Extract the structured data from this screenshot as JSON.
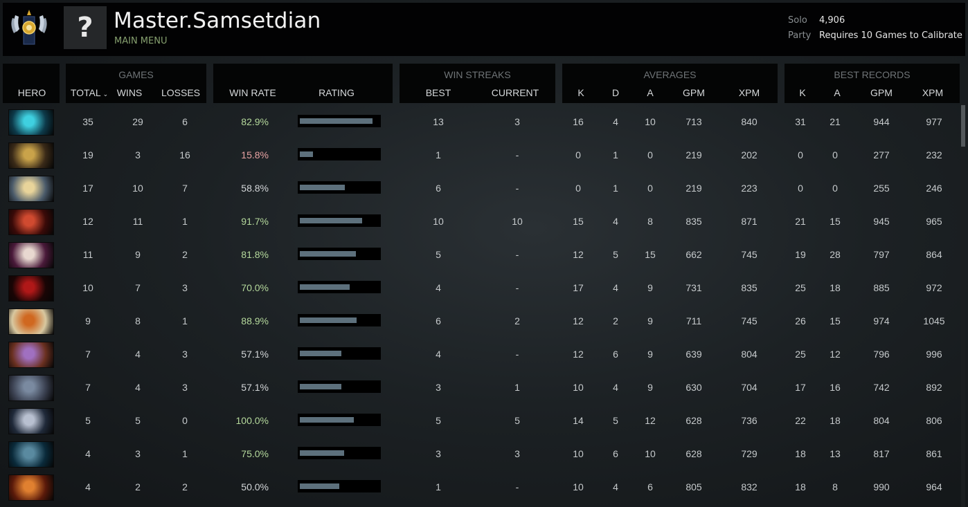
{
  "player": {
    "name": "Master.Samsetdian",
    "main_menu_label": "MAIN MENU",
    "avatar_placeholder": "?"
  },
  "mmr": {
    "solo_label": "Solo",
    "solo_value": "4,906",
    "party_label": "Party",
    "party_value": "Requires 10 Games to Calibrate"
  },
  "header": {
    "hero": "HERO",
    "games": "GAMES",
    "total": "TOTAL",
    "wins": "WINS",
    "losses": "LOSSES",
    "win_rate": "WIN RATE",
    "rating": "RATING",
    "win_streaks": "WIN STREAKS",
    "best": "BEST",
    "current": "CURRENT",
    "averages": "AVERAGES",
    "k": "K",
    "d": "D",
    "a": "A",
    "gpm": "GPM",
    "xpm": "XPM",
    "best_records": "BEST RECORDS"
  },
  "colors": {
    "win_rate_good": "#b5d99c",
    "win_rate_bad": "#e8a3a3",
    "win_rate_neutral": "#d4d7d9",
    "rating_fill": "#5d707c",
    "main_menu_green": "#86a06f"
  },
  "rows": [
    {
      "icon": "hero-cyan-icon",
      "colors": [
        "#0d3a4a",
        "#3fd0e0"
      ],
      "total": "35",
      "wins": "29",
      "losses": "6",
      "win_rate": "82.9%",
      "rating": 0.92,
      "streak_best": "13",
      "streak_current": "3",
      "k": "16",
      "d": "4",
      "a": "10",
      "gpm": "713",
      "xpm": "840",
      "best_k": "31",
      "best_a": "21",
      "best_gpm": "944",
      "best_xpm": "977"
    },
    {
      "icon": "hero-gold-mage-icon",
      "colors": [
        "#3a2a18",
        "#c9a34a"
      ],
      "total": "19",
      "wins": "3",
      "losses": "16",
      "win_rate": "15.8%",
      "rating": 0.17,
      "streak_best": "1",
      "streak_current": "-",
      "k": "0",
      "d": "1",
      "a": "0",
      "gpm": "219",
      "xpm": "202",
      "best_k": "0",
      "best_a": "0",
      "best_gpm": "277",
      "best_xpm": "232"
    },
    {
      "icon": "hero-light-knight-icon",
      "colors": [
        "#4a5a6a",
        "#e8d49a"
      ],
      "total": "17",
      "wins": "10",
      "losses": "7",
      "win_rate": "58.8%",
      "rating": 0.57,
      "streak_best": "6",
      "streak_current": "-",
      "k": "0",
      "d": "1",
      "a": "0",
      "gpm": "219",
      "xpm": "223",
      "best_k": "0",
      "best_a": "0",
      "best_gpm": "255",
      "best_xpm": "246"
    },
    {
      "icon": "hero-red-demon-icon",
      "colors": [
        "#3a0a08",
        "#d04a30"
      ],
      "total": "12",
      "wins": "11",
      "losses": "1",
      "win_rate": "91.7%",
      "rating": 0.79,
      "streak_best": "10",
      "streak_current": "10",
      "k": "15",
      "d": "4",
      "a": "8",
      "gpm": "835",
      "xpm": "871",
      "best_k": "21",
      "best_a": "15",
      "best_gpm": "945",
      "best_xpm": "965"
    },
    {
      "icon": "hero-pale-invoker-icon",
      "colors": [
        "#4a1a3a",
        "#e8d8d0"
      ],
      "total": "11",
      "wins": "9",
      "losses": "2",
      "win_rate": "81.8%",
      "rating": 0.71,
      "streak_best": "5",
      "streak_current": "-",
      "k": "12",
      "d": "5",
      "a": "15",
      "gpm": "662",
      "xpm": "745",
      "best_k": "19",
      "best_a": "28",
      "best_gpm": "797",
      "best_xpm": "864"
    },
    {
      "icon": "hero-shadow-fiend-icon",
      "colors": [
        "#1a0505",
        "#b01818"
      ],
      "total": "10",
      "wins": "7",
      "losses": "3",
      "win_rate": "70.0%",
      "rating": 0.63,
      "streak_best": "4",
      "streak_current": "-",
      "k": "17",
      "d": "4",
      "a": "9",
      "gpm": "731",
      "xpm": "835",
      "best_k": "25",
      "best_a": "18",
      "best_gpm": "885",
      "best_xpm": "972"
    },
    {
      "icon": "hero-elf-orange-icon",
      "colors": [
        "#d8c8a0",
        "#d06820"
      ],
      "total": "9",
      "wins": "8",
      "losses": "1",
      "win_rate": "88.9%",
      "rating": 0.72,
      "streak_best": "6",
      "streak_current": "2",
      "k": "12",
      "d": "2",
      "a": "9",
      "gpm": "711",
      "xpm": "745",
      "best_k": "26",
      "best_a": "15",
      "best_gpm": "974",
      "best_xpm": "1045"
    },
    {
      "icon": "hero-purple-jester-icon",
      "colors": [
        "#6a3020",
        "#a070c0"
      ],
      "total": "7",
      "wins": "4",
      "losses": "3",
      "win_rate": "57.1%",
      "rating": 0.53,
      "streak_best": "4",
      "streak_current": "-",
      "k": "12",
      "d": "6",
      "a": "9",
      "gpm": "639",
      "xpm": "804",
      "best_k": "25",
      "best_a": "12",
      "best_gpm": "796",
      "best_xpm": "996"
    },
    {
      "icon": "hero-armored-blue-icon",
      "colors": [
        "#3a4050",
        "#7a8aa0"
      ],
      "total": "7",
      "wins": "4",
      "losses": "3",
      "win_rate": "57.1%",
      "rating": 0.53,
      "streak_best": "3",
      "streak_current": "1",
      "k": "10",
      "d": "4",
      "a": "9",
      "gpm": "630",
      "xpm": "704",
      "best_k": "17",
      "best_a": "16",
      "best_gpm": "742",
      "best_xpm": "892"
    },
    {
      "icon": "hero-pale-horned-icon",
      "colors": [
        "#202a3a",
        "#b8c0d0"
      ],
      "total": "5",
      "wins": "5",
      "losses": "0",
      "win_rate": "100.0%",
      "rating": 0.68,
      "streak_best": "5",
      "streak_current": "5",
      "k": "14",
      "d": "5",
      "a": "12",
      "gpm": "628",
      "xpm": "736",
      "best_k": "22",
      "best_a": "18",
      "best_gpm": "804",
      "best_xpm": "806"
    },
    {
      "icon": "hero-phantom-assassin-icon",
      "colors": [
        "#0a2a3a",
        "#5a8aa0"
      ],
      "total": "4",
      "wins": "3",
      "losses": "1",
      "win_rate": "75.0%",
      "rating": 0.56,
      "streak_best": "3",
      "streak_current": "3",
      "k": "10",
      "d": "6",
      "a": "10",
      "gpm": "628",
      "xpm": "729",
      "best_k": "18",
      "best_a": "13",
      "best_gpm": "817",
      "best_xpm": "861"
    },
    {
      "icon": "hero-fire-lord-icon",
      "colors": [
        "#5a1a0a",
        "#e08030"
      ],
      "total": "4",
      "wins": "2",
      "losses": "2",
      "win_rate": "50.0%",
      "rating": 0.5,
      "streak_best": "1",
      "streak_current": "-",
      "k": "10",
      "d": "4",
      "a": "6",
      "gpm": "805",
      "xpm": "832",
      "best_k": "18",
      "best_a": "8",
      "best_gpm": "990",
      "best_xpm": "964"
    }
  ]
}
